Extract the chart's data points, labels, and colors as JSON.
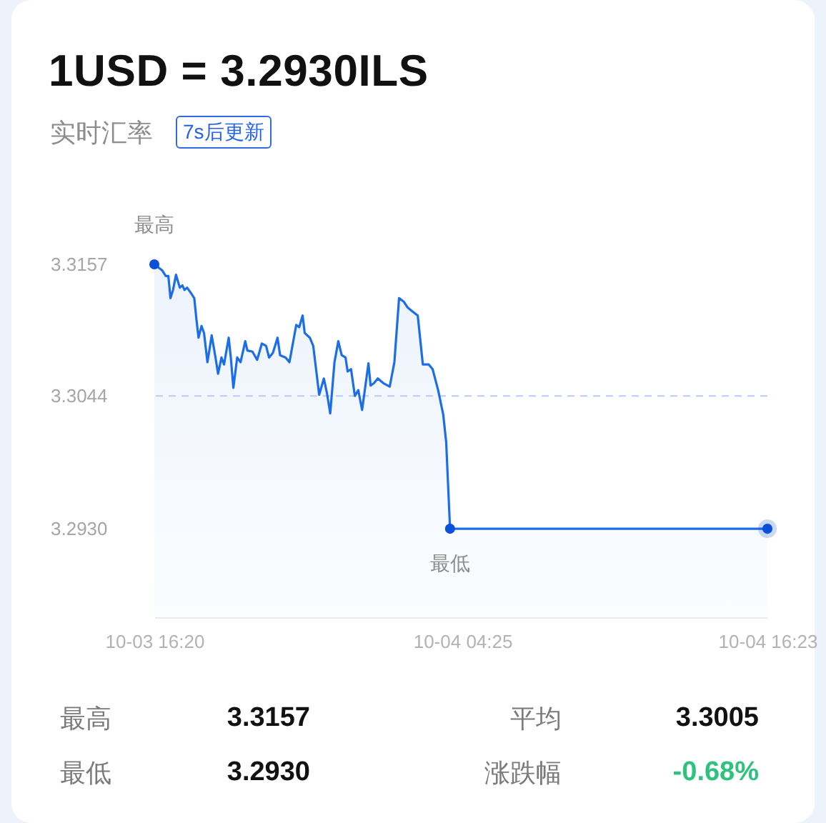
{
  "chart_data": {
    "type": "area",
    "title": "1USD = 3.2930ILS",
    "subtitle": "实时汇率",
    "x": [
      "--10-03T16:20",
      "--10-03T16:38",
      "--10-03T16:47",
      "--10-03T16:53",
      "--10-03T16:58",
      "--10-03T17:04",
      "--10-03T17:11",
      "--10-03T17:20",
      "--10-03T17:26",
      "--10-03T17:31",
      "--10-03T17:37",
      "--10-03T17:45",
      "--10-03T17:54",
      "--10-03T17:59",
      "--10-03T18:04",
      "--10-03T18:11",
      "--10-03T18:17",
      "--10-03T18:25",
      "--10-03T18:35",
      "--10-03T18:44",
      "--10-03T18:50",
      "--10-03T18:58",
      "--10-03T19:04",
      "--10-03T19:15",
      "--10-03T19:20",
      "--10-03T19:26",
      "--10-03T19:35",
      "--10-03T19:43",
      "--10-03T19:54",
      "--10-03T19:59",
      "--10-03T20:11",
      "--10-03T20:22",
      "--10-03T20:33",
      "--10-03T20:43",
      "--10-03T20:50",
      "--10-03T20:59",
      "--10-03T21:10",
      "--10-03T21:16",
      "--10-03T21:29",
      "--10-03T21:38",
      "--10-03T21:54",
      "--10-03T22:01",
      "--10-03T22:09",
      "--10-03T22:14",
      "--10-03T22:26",
      "--10-03T22:34",
      "--10-03T22:48",
      "--10-03T22:59",
      "--10-03T23:06",
      "--10-03T23:14",
      "--10-03T23:24",
      "--10-03T23:33",
      "--10-03T23:41",
      "--10-03T23:50",
      "--10-03T23:55",
      "--10-04T00:03",
      "--10-04T00:12",
      "--10-04T00:20",
      "--10-04T00:29",
      "--10-04T00:44",
      "--10-04T00:49",
      "--10-04T00:57",
      "--10-04T01:06",
      "--10-04T01:19",
      "--10-04T01:34",
      "--10-04T01:45",
      "--10-04T01:56",
      "--10-04T02:07",
      "--10-04T02:16",
      "--10-04T02:26",
      "--10-04T02:40",
      "--10-04T02:52",
      "--10-04T03:06",
      "--10-04T03:15",
      "--10-04T03:28",
      "--10-04T03:40",
      "--10-04T03:47",
      "--10-04T03:56",
      "--10-04T16:23"
    ],
    "series": [
      {
        "color": "#1c6ee8",
        "values": [
          3.3157,
          3.3152,
          3.3147,
          3.3147,
          3.3128,
          3.3135,
          3.3148,
          3.3137,
          3.3139,
          3.3135,
          3.3137,
          3.3133,
          3.3128,
          3.311,
          3.3094,
          3.3104,
          3.3098,
          3.3073,
          3.3096,
          3.3077,
          3.3063,
          3.3077,
          3.3071,
          3.3094,
          3.3077,
          3.3051,
          3.3077,
          3.3073,
          3.3091,
          3.3083,
          3.3082,
          3.3075,
          3.3089,
          3.3087,
          3.3077,
          3.3081,
          3.3094,
          3.3079,
          3.3077,
          3.3073,
          3.3105,
          3.3103,
          3.3113,
          3.3098,
          3.3094,
          3.3087,
          3.3045,
          3.3059,
          3.3047,
          3.3029,
          3.3073,
          3.3091,
          3.3079,
          3.3077,
          3.3065,
          3.3067,
          3.3044,
          3.3049,
          3.3032,
          3.3072,
          3.3053,
          3.3055,
          3.3059,
          3.3055,
          3.3052,
          3.3073,
          3.3128,
          3.3125,
          3.312,
          3.3117,
          3.3113,
          3.3071,
          3.3071,
          3.3067,
          3.3049,
          3.3028,
          3.3004,
          3.293,
          3.293
        ]
      },
      {
        "type": "scatter",
        "color": "#0a50d8",
        "x": [
          "--10-03T16:20",
          "--10-04T03:56",
          "--10-04T16:23"
        ],
        "values": [
          3.3157,
          3.293,
          3.293
        ]
      }
    ],
    "xlim": [
      "--10-03T16:20",
      "--10-04T16:23"
    ],
    "xticks": [
      {
        "value": "--10-03T16:20",
        "label": "10-03 16:20"
      },
      {
        "value": "--10-04T04:25",
        "label": "10-04 04:25"
      },
      {
        "value": "--10-04T16:23",
        "label": "10-04 16:23"
      }
    ],
    "ylim": [
      3.2854,
      3.3157
    ],
    "yticks": [
      3.3157,
      3.3044,
      {
        "value": 3.293,
        "label": "3.2930"
      }
    ],
    "ref_lines": [
      {
        "axis": "y",
        "value": 3.3044,
        "color": "#b5cdfb",
        "line_style": "dashed"
      }
    ],
    "annotations": [
      {
        "text": "最高",
        "x": "--10-03T16:20",
        "y": 3.3157
      },
      {
        "text": "最低",
        "x": "--10-04T03:56",
        "y": 3.293
      },
      "7s后更新",
      "最高",
      "3.3157",
      "平均",
      "3.3005",
      "最低",
      "3.2930",
      "涨跌幅",
      "-0.68%"
    ]
  }
}
